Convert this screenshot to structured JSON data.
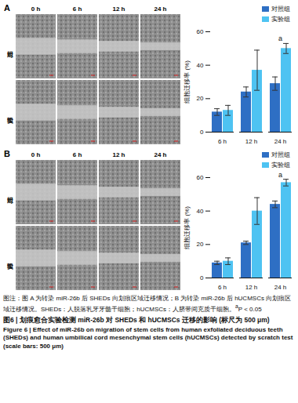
{
  "panels": [
    {
      "letter": "A",
      "time_labels": [
        "0 h",
        "6 h",
        "12 h",
        "24 h"
      ],
      "row_labels": [
        "对照组",
        "实验组"
      ]
    },
    {
      "letter": "B",
      "time_labels": [
        "0 h",
        "6 h",
        "12 h",
        "24 h"
      ],
      "row_labels": [
        "对照组",
        "实验组"
      ]
    }
  ],
  "chart_data": [
    {
      "type": "bar",
      "y_label": "细胞迁移率 (%)",
      "categories": [
        "6 h",
        "12 h",
        "24 h"
      ],
      "series": [
        {
          "name": "对照组",
          "color": "#2e6fc4",
          "values": [
            12,
            24,
            29
          ],
          "errors": [
            2,
            3,
            4
          ]
        },
        {
          "name": "实验组",
          "color": "#4ec3f2",
          "values": [
            13,
            37,
            50
          ],
          "errors": [
            3,
            12,
            3
          ]
        }
      ],
      "ylim": [
        0,
        60
      ],
      "yticks": [
        0,
        20,
        40,
        60
      ],
      "legend": "top-right",
      "annotations": [
        {
          "category": "24 h",
          "text": "a"
        }
      ]
    },
    {
      "type": "bar",
      "y_label": "细胞迁移率 (%)",
      "categories": [
        "6 h",
        "12 h",
        "24 h"
      ],
      "series": [
        {
          "name": "对照组",
          "color": "#2e6fc4",
          "values": [
            9,
            21,
            44
          ],
          "errors": [
            1,
            1,
            2
          ]
        },
        {
          "name": "实验组",
          "color": "#4ec3f2",
          "values": [
            10,
            40,
            57
          ],
          "errors": [
            2,
            8,
            2
          ]
        }
      ],
      "ylim": [
        0,
        60
      ],
      "yticks": [
        0,
        20,
        40,
        60
      ],
      "legend": "top-right",
      "annotations": [
        {
          "category": "24 h",
          "text": "a"
        }
      ]
    }
  ],
  "figure": {
    "caption": "图注：图 A 为转染 miR-26b 后 SHEDs 向划痕区域迁移情况；B 为转染 miR-26b 后 hUCMSCs 向划痕区域迁移情况。SHEDs：人脱落乳牙牙髓干细胞；hUCMSCs：人脐带间充质干细胞。",
    "caption_note_mark": "a",
    "caption_note": "P < 0.05",
    "title_zh": "图6 | 划痕愈合实验检测 miR-26b 对 SHEDs 和 hUCMSCs 迁移的影响 (标尺为 500 μm)",
    "title_en": "Figure 6 | Effect of miR-26b on migration of stem cells from human exfoliated deciduous teeth (SHEDs) and human umbilical cord mesenchymal stem cells (hUCMSCs) detected by scratch test (scale bars: 500 μm)"
  }
}
